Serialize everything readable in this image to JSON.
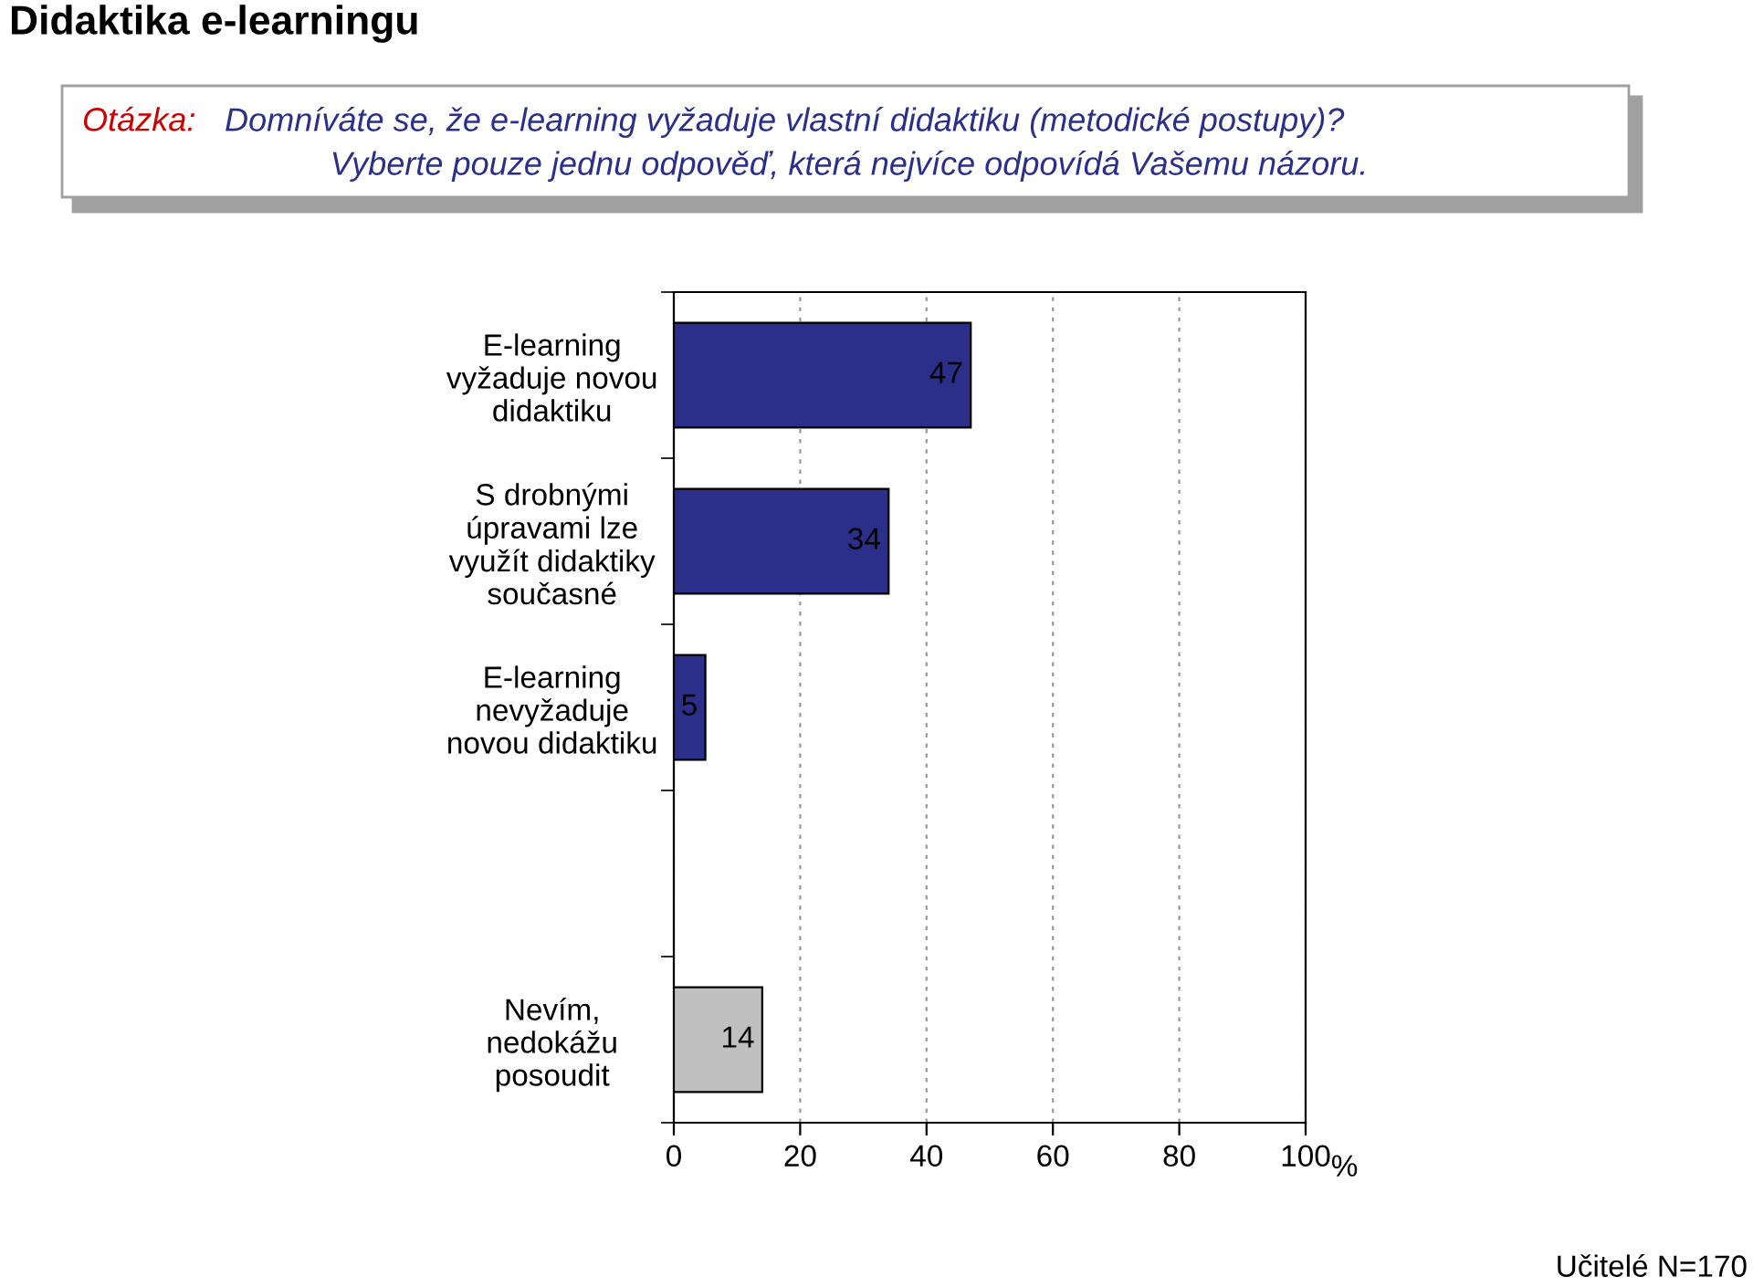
{
  "chart_data": {
    "type": "bar",
    "orientation": "horizontal",
    "title": "Didaktika e-learningu",
    "annotations": [
      "Otázka:",
      "Domníváte se, že e-learning vyžaduje vlastní didaktiku (metodické postupy)?",
      "Vyberte pouze jednu odpověď, která nejvíce odpovídá Vašemu názoru.",
      "Učitelé N=170"
    ],
    "categories": [
      "E-learning\nvyžaduje novou\ndidaktiku",
      "S drobnými\núpravami lze\nvyužít didaktiky\nsoučasné",
      "E-learning\nnevyžaduje\nnovou didaktiku",
      null,
      "Nevím,\nnedokážu\nposoudit"
    ],
    "values": [
      47,
      34,
      5,
      null,
      14
    ],
    "colors": [
      "#2b2f8a",
      "#2b2f8a",
      "#2b2f8a",
      null,
      "#c0c0c0"
    ],
    "xlabel": "%",
    "xlim": [
      0,
      100
    ],
    "xticks": [
      0,
      20,
      40,
      60,
      80,
      100
    ],
    "grid": "x",
    "data_labels": true
  }
}
